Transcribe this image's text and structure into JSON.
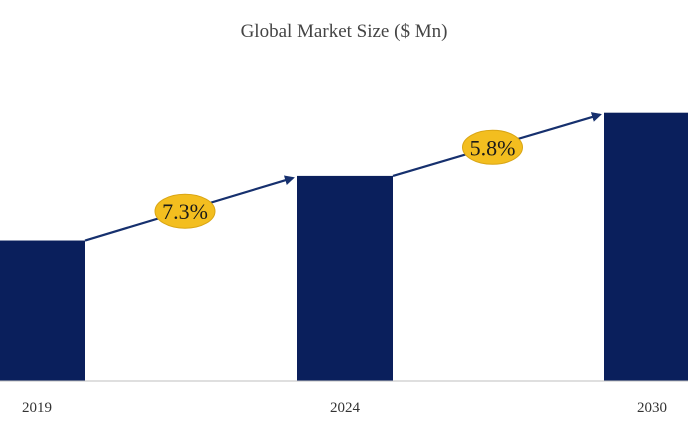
{
  "chart_data": {
    "type": "bar",
    "title": "Global Market Size ($ Mn)",
    "categories": [
      "2019",
      "2024",
      "2030"
    ],
    "values": [
      100,
      146,
      191
    ],
    "xlabel": "",
    "ylabel": "",
    "ylim": [
      0,
      210
    ],
    "grid": false,
    "legend": "none",
    "annotations": [
      {
        "from": "2019",
        "to": "2024",
        "label": "7.3%"
      },
      {
        "from": "2024",
        "to": "2030",
        "label": "5.8%"
      }
    ],
    "colors": {
      "bar": "#0a1f5c",
      "arrow": "#16306e",
      "badge_fill": "#f3be1f",
      "badge_stroke": "#d9a514"
    }
  }
}
